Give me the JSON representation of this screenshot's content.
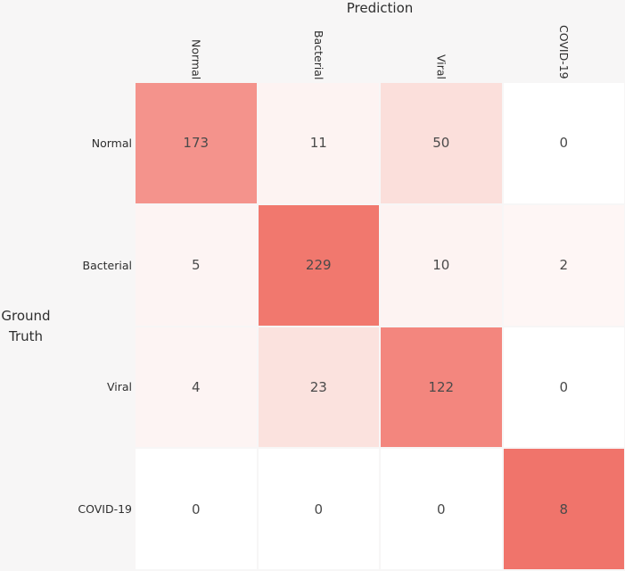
{
  "chart_data": {
    "type": "heatmap",
    "title": "Prediction",
    "ylabel": "Ground Truth",
    "columns": [
      "Normal",
      "Bacterial",
      "Viral",
      "COVID-19"
    ],
    "rows": [
      "Normal",
      "Bacterial",
      "Viral",
      "COVID-19"
    ],
    "matrix": [
      [
        173,
        11,
        50,
        0
      ],
      [
        5,
        229,
        10,
        2
      ],
      [
        4,
        23,
        122,
        0
      ],
      [
        0,
        0,
        0,
        8
      ]
    ],
    "cell_colors": [
      [
        "#F4938C",
        "#FDF3F2",
        "#FBDFDB",
        "#FFFFFF"
      ],
      [
        "#FDF4F3",
        "#F1786E",
        "#FDF3F2",
        "#FEF6F5"
      ],
      [
        "#FDF4F3",
        "#FBE2DE",
        "#F3867E",
        "#FFFFFF"
      ],
      [
        "#FFFFFF",
        "#FFFFFF",
        "#FFFFFF",
        "#F0746B"
      ]
    ],
    "colormap": {
      "low": "#FFFFFF",
      "high": "#F0746B"
    },
    "value_text_color": "#4a4a4a",
    "background_color": "#F7F6F6",
    "legend": "none",
    "grid": "off"
  }
}
